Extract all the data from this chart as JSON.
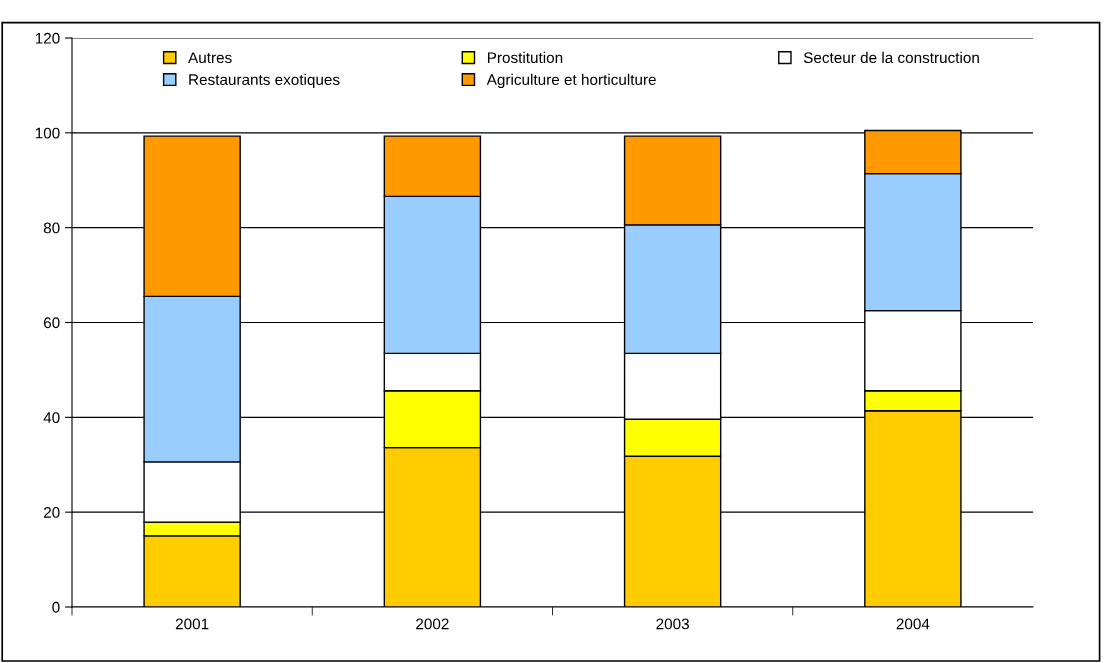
{
  "chart_data": {
    "type": "bar",
    "stacked": true,
    "categories": [
      "2001",
      "2002",
      "2003",
      "2004"
    ],
    "series": [
      {
        "name": "Autres",
        "color": "#ffcc00",
        "values": [
          15.0,
          33.6,
          31.8,
          41.4
        ]
      },
      {
        "name": "Prostitution",
        "color": "#ffff00",
        "values": [
          2.9,
          12.0,
          7.8,
          4.2
        ]
      },
      {
        "name": "Secteur de la construction",
        "color": "#ffffff",
        "values": [
          12.7,
          7.9,
          13.9,
          16.9
        ]
      },
      {
        "name": "Restaurants exotiques",
        "color": "#99ccff",
        "values": [
          34.9,
          33.1,
          27.1,
          28.9
        ]
      },
      {
        "name": "Agriculture et horticulture",
        "color": "#ff9900",
        "values": [
          33.8,
          12.7,
          18.7,
          9.1
        ]
      }
    ],
    "ylim": [
      0,
      120
    ],
    "yticks": [
      0,
      20,
      40,
      60,
      80,
      100,
      120
    ],
    "grid": "y",
    "legend": "top"
  }
}
